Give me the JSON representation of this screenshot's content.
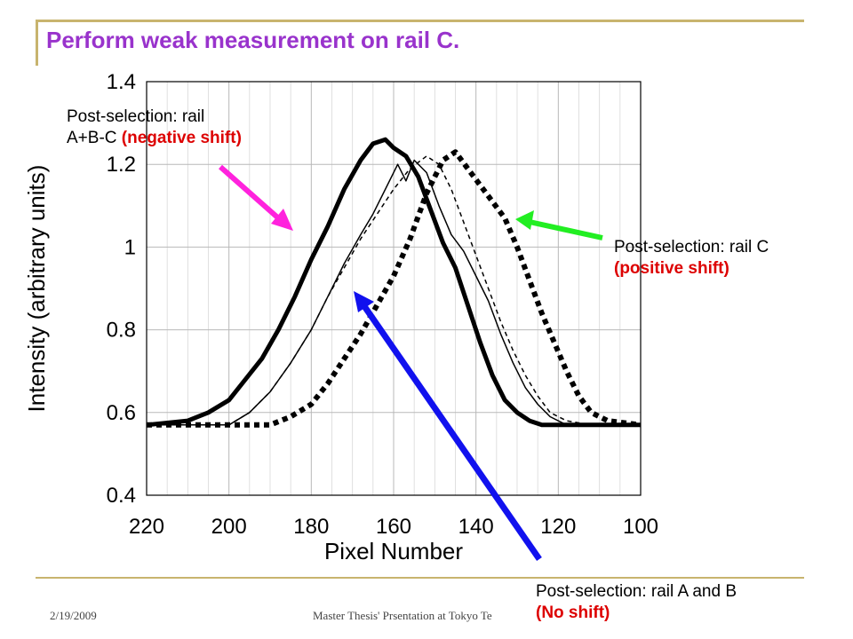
{
  "slide": {
    "title": "Perform weak measurement on rail C.",
    "footer_date": "2/19/2009",
    "footer_center": "Master Thesis' Prsentation at Tokyo Te"
  },
  "annotations": {
    "neg": {
      "line1": "Post-selection: rail",
      "line2": "A+B-C",
      "shift": "(negative shift)"
    },
    "pos": {
      "line1": "Post-selection: rail C",
      "shift": "(positive shift)"
    },
    "none": {
      "line1": "Post-selection: rail A and B",
      "shift": "(No shift)"
    }
  },
  "arrow_colors": {
    "magenta": "#ff22dd",
    "green": "#22ee22",
    "blue": "#1111ee",
    "red_text": "#dd0000"
  },
  "chart_data": {
    "type": "line",
    "xlabel": "Pixel Number",
    "ylabel": "Intensity (arbitrary units)",
    "xlim": [
      220,
      100
    ],
    "ylim": [
      0.4,
      1.4
    ],
    "x_ticks": [
      "220",
      "200",
      "180",
      "160",
      "140",
      "120",
      "100"
    ],
    "y_ticks": [
      "0.4",
      "0.6",
      "0.8",
      "1",
      "1.2",
      "1.4"
    ],
    "series": [
      {
        "style": "thick-solid",
        "x": [
          220,
          210,
          205,
          200,
          196,
          192,
          188,
          184,
          180,
          176,
          172,
          168,
          165,
          162,
          160,
          157,
          154,
          151,
          148,
          145,
          142,
          139,
          136,
          133,
          130,
          127,
          124,
          120,
          115,
          100
        ],
        "y": [
          0.57,
          0.58,
          0.6,
          0.63,
          0.68,
          0.73,
          0.8,
          0.88,
          0.97,
          1.05,
          1.14,
          1.21,
          1.25,
          1.26,
          1.24,
          1.22,
          1.17,
          1.09,
          1.01,
          0.95,
          0.86,
          0.77,
          0.69,
          0.63,
          0.6,
          0.58,
          0.57,
          0.57,
          0.57,
          0.57
        ]
      },
      {
        "style": "thin-solid",
        "x": [
          220,
          200,
          195,
          190,
          185,
          180,
          176,
          172,
          168,
          165,
          162,
          159,
          157,
          155,
          152,
          149,
          146,
          143,
          140,
          137,
          134,
          131,
          128,
          125,
          122,
          118,
          112,
          100
        ],
        "y": [
          0.57,
          0.57,
          0.6,
          0.65,
          0.72,
          0.8,
          0.88,
          0.96,
          1.03,
          1.08,
          1.14,
          1.2,
          1.16,
          1.21,
          1.18,
          1.1,
          1.03,
          0.99,
          0.93,
          0.87,
          0.79,
          0.72,
          0.66,
          0.62,
          0.59,
          0.57,
          0.57,
          0.57
        ]
      },
      {
        "style": "thin-dashed",
        "x": [
          220,
          200,
          195,
          190,
          185,
          180,
          176,
          172,
          168,
          164,
          160,
          156,
          152,
          149,
          146,
          143,
          140,
          137,
          134,
          131,
          128,
          125,
          122,
          118,
          112,
          100
        ],
        "y": [
          0.57,
          0.57,
          0.6,
          0.65,
          0.72,
          0.8,
          0.88,
          0.95,
          1.02,
          1.08,
          1.14,
          1.19,
          1.22,
          1.2,
          1.14,
          1.06,
          0.98,
          0.9,
          0.82,
          0.75,
          0.69,
          0.64,
          0.6,
          0.58,
          0.57,
          0.57
        ]
      },
      {
        "style": "thick-dotted",
        "x": [
          220,
          190,
          185,
          180,
          176,
          172,
          168,
          164,
          160,
          156,
          152,
          148,
          145,
          142,
          139,
          136,
          133,
          130,
          127,
          124,
          121,
          118,
          115,
          112,
          108,
          100
        ],
        "y": [
          0.57,
          0.57,
          0.59,
          0.62,
          0.67,
          0.73,
          0.79,
          0.86,
          0.93,
          1.02,
          1.13,
          1.21,
          1.23,
          1.19,
          1.15,
          1.11,
          1.07,
          1.0,
          0.92,
          0.84,
          0.77,
          0.7,
          0.64,
          0.6,
          0.58,
          0.57
        ]
      }
    ]
  }
}
